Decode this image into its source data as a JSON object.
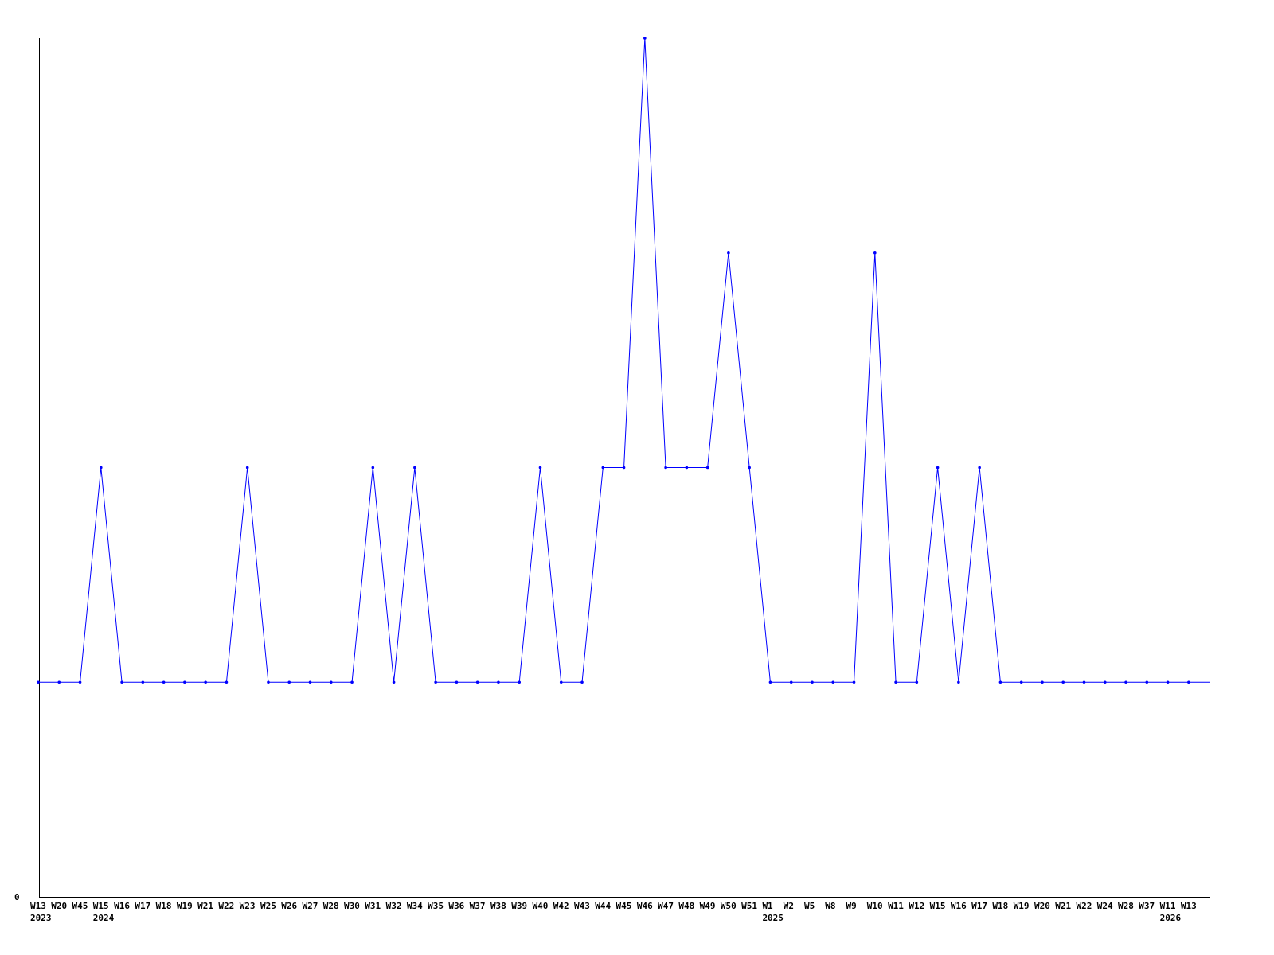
{
  "chart_data": {
    "type": "line",
    "title": "",
    "xlabel": "",
    "ylabel": "",
    "ylim": [
      0,
      4
    ],
    "y_tick_labels": [
      "0"
    ],
    "grid": false,
    "line_color": "#0000ff",
    "axis_color": "#000000",
    "categories": [
      "W13",
      "W20",
      "W45",
      "W15",
      "W16",
      "W17",
      "W18",
      "W19",
      "W21",
      "W22",
      "W23",
      "W25",
      "W26",
      "W27",
      "W28",
      "W30",
      "W31",
      "W32",
      "W34",
      "W35",
      "W36",
      "W37",
      "W38",
      "W39",
      "W40",
      "W42",
      "W43",
      "W44",
      "W45",
      "W46",
      "W47",
      "W48",
      "W49",
      "W50",
      "W51",
      "W1",
      "W2",
      "W5",
      "W8",
      "W9",
      "W10",
      "W11",
      "W12",
      "W15",
      "W16",
      "W17",
      "W18",
      "W19",
      "W20",
      "W21",
      "W22",
      "W24",
      "W28",
      "W37",
      "W11",
      "W13"
    ],
    "year_labels": [
      {
        "index": 0,
        "label": "2023"
      },
      {
        "index": 3,
        "label": "2024"
      },
      {
        "index": 35,
        "label": "2025"
      },
      {
        "index": 54,
        "label": "2026"
      }
    ],
    "series": [
      {
        "values": [
          1,
          1,
          1,
          2,
          1,
          1,
          1,
          1,
          1,
          1,
          2,
          1,
          1,
          1,
          1,
          1,
          2,
          1,
          2,
          1,
          1,
          1,
          1,
          1,
          2,
          1,
          1,
          2,
          2,
          4,
          2,
          2,
          2,
          3,
          2,
          1,
          1,
          1,
          1,
          1,
          3,
          1,
          1,
          2,
          1,
          2,
          1,
          1,
          1,
          1,
          1,
          1,
          1,
          1,
          1,
          1
        ]
      }
    ]
  }
}
